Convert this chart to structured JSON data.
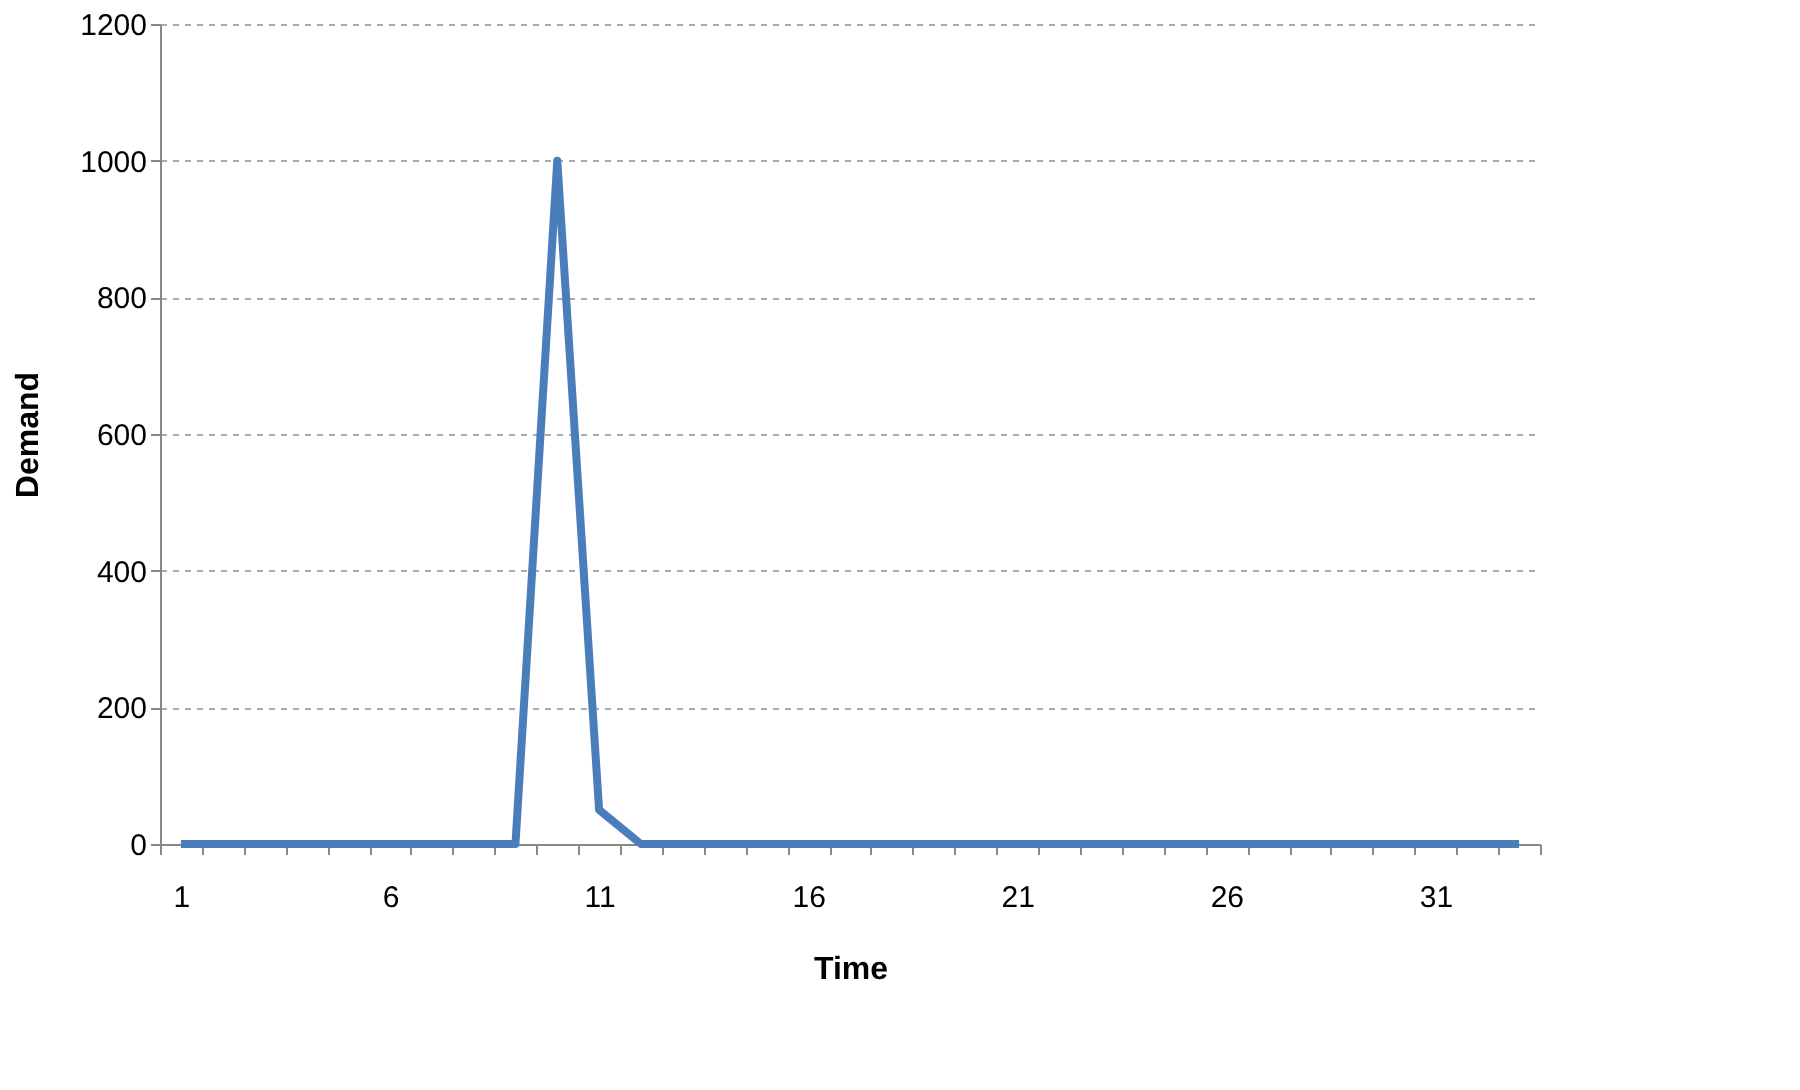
{
  "chart_data": {
    "type": "line",
    "xlabel": "Time",
    "ylabel": "Demand",
    "categories": [
      "1",
      null,
      null,
      null,
      null,
      "6",
      null,
      null,
      null,
      null,
      "11",
      null,
      null,
      null,
      null,
      "16",
      null,
      null,
      null,
      null,
      "21",
      null,
      null,
      null,
      null,
      "26",
      null,
      null,
      null,
      null,
      "31",
      null,
      null
    ],
    "series": [
      {
        "color": "#4a7ebb",
        "values": [
          0,
          0,
          0,
          0,
          0,
          0,
          0,
          0,
          0,
          1000,
          50,
          0,
          0,
          0,
          0,
          0,
          0,
          0,
          0,
          0,
          0,
          0,
          0,
          0,
          0,
          0,
          0,
          0,
          0,
          0,
          0,
          0,
          0
        ]
      }
    ],
    "ylim": [
      0,
      1200
    ],
    "yticks": [
      0,
      200,
      400,
      600,
      800,
      1000,
      1200
    ],
    "grid": "y",
    "legend": false,
    "marker": "none",
    "line_style": "solid"
  }
}
